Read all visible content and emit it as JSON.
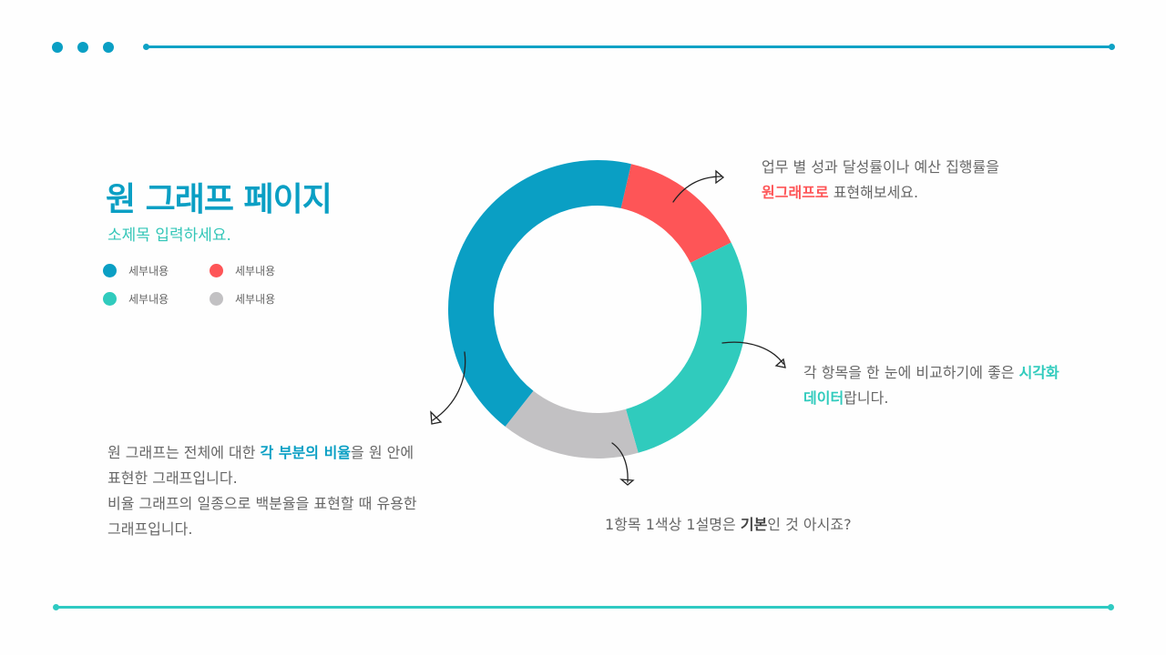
{
  "colors": {
    "primary": "#0a9fc4",
    "red": "#fe5557",
    "teal": "#30cbbd",
    "gray": "#c2c1c3",
    "top_line": "#0fa2c5",
    "bottom_line": "#2fcac2"
  },
  "header": {
    "dots": [
      "dot",
      "dot",
      "dot"
    ]
  },
  "title": "원 그래프 페이지",
  "subtitle": "소제목 입력하세요.",
  "legend": [
    {
      "label": "세부내용",
      "color": "#0a9fc4"
    },
    {
      "label": "세부내용",
      "color": "#fe5557"
    },
    {
      "label": "세부내용",
      "color": "#30cbbd"
    },
    {
      "label": "세부내용",
      "color": "#c2c1c3"
    }
  ],
  "annotations": {
    "top_right": {
      "line1": "업무 별 성과 달성률이나 예산 집행률을",
      "highlight": "원그래프로",
      "line2_rest": " 표현해보세요."
    },
    "right": {
      "line1_pre": "각 항목을 한 눈에 비교하기에 좋은 ",
      "line1_highlight": "시각화",
      "line2_highlight": "데이터",
      "line2_rest": "랍니다."
    },
    "bottom": {
      "pre": "1항목 1색상 1설명은 ",
      "highlight": "기본",
      "post": "인 것 아시죠?"
    },
    "left": {
      "line1_pre": "원 그래프는 전체에 대한 ",
      "line1_highlight": "각 부분의 비율",
      "line1_post": "을 원 안에",
      "line2": "표현한 그래프입니다.",
      "line3": "비율 그래프의 일종으로 백분율을 표현할 때 유용한",
      "line4": "그래프입니다."
    }
  },
  "chart_data": {
    "type": "pie",
    "variant": "donut",
    "title": "원 그래프 페이지",
    "categories": [
      "세부내용",
      "세부내용",
      "세부내용",
      "세부내용"
    ],
    "series": [
      {
        "name": "blue",
        "value": 43,
        "color": "#0a9fc4"
      },
      {
        "name": "red",
        "value": 14,
        "color": "#fe5557"
      },
      {
        "name": "teal",
        "value": 28,
        "color": "#30cbbd"
      },
      {
        "name": "gray",
        "value": 15,
        "color": "#c2c1c3"
      }
    ],
    "values": [
      43,
      14,
      28,
      15
    ],
    "start_angle_deg": 13,
    "order_clockwise": [
      "red",
      "teal",
      "gray",
      "blue"
    ],
    "legend_position": "left",
    "center": [
      656,
      340
    ],
    "outer_radius": 164,
    "inner_radius": 114
  }
}
